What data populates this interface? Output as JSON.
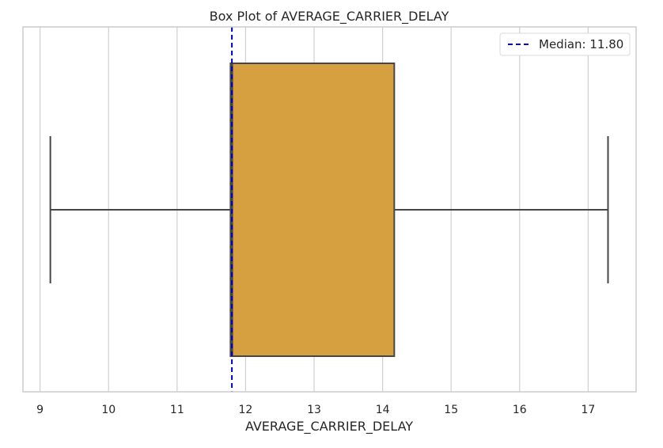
{
  "chart_data": {
    "type": "box",
    "title": "Box Plot of AVERAGE_CARRIER_DELAY",
    "xlabel": "AVERAGE_CARRIER_DELAY",
    "ylabel": "",
    "orientation": "horizontal",
    "xlim": [
      8.75,
      17.7
    ],
    "xticks": [
      9,
      10,
      11,
      12,
      13,
      14,
      15,
      16,
      17
    ],
    "grid": true,
    "legend_position": "top-right",
    "box": {
      "whisker_low": 9.15,
      "q1": 11.78,
      "median": 11.8,
      "q3": 14.17,
      "whisker_high": 17.29
    },
    "box_color": "#d69f3f",
    "median_line": {
      "value": 11.8,
      "color": "#0000cc",
      "style": "dashed"
    },
    "legend": [
      {
        "label": "Median: 11.80"
      }
    ]
  }
}
